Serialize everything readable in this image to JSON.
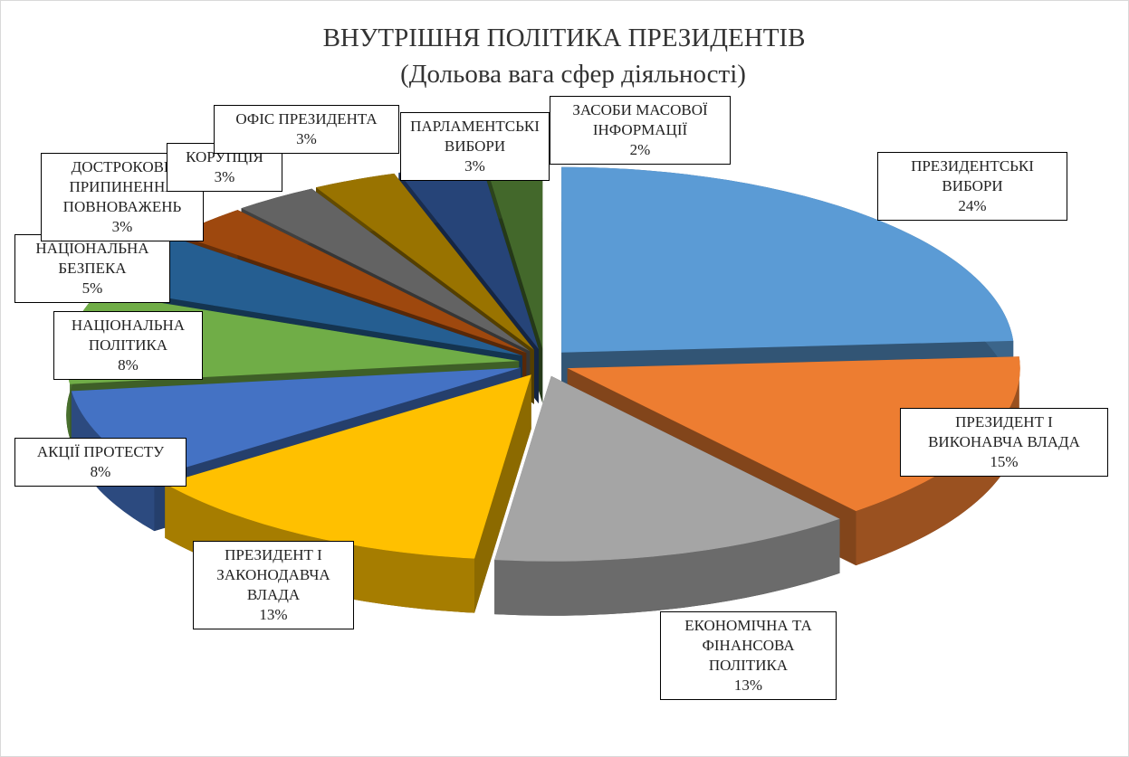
{
  "chart_data": {
    "type": "pie3d",
    "title": "ВНУТРІШНЯ ПОЛІТИКА ПРЕЗИДЕНТІВ",
    "subtitle": "(Дольова вага сфер діяльності)",
    "categories": [
      "ПРЕЗИДЕНТСЬКІ ВИБОРИ",
      "ПРЕЗИДЕНТ І ВИКОНАВЧА ВЛАДА",
      "ЕКОНОМІЧНА ТА ФІНАНСОВА ПОЛІТИКА",
      "ПРЕЗИДЕНТ І ЗАКОНОДАВЧА ВЛАДА",
      "АКЦІЇ ПРОТЕСТУ",
      "НАЦІОНАЛЬНА ПОЛІТИКА",
      "НАЦІОНАЛЬНА БЕЗПЕКА",
      "ДОСТРОКОВЕ ПРИПИНЕННЯ ПОВНОВАЖЕНЬ",
      "КОРУПЦІЯ",
      "ОФІС ПРЕЗИДЕНТА",
      "ПАРЛАМЕНТСЬКІ ВИБОРИ",
      "ЗАСОБИ МАСОВОЇ ІНФОРМАЦІЇ"
    ],
    "values": [
      24,
      15,
      13,
      13,
      8,
      8,
      5,
      3,
      3,
      3,
      3,
      2
    ],
    "value_labels": [
      "24%",
      "15%",
      "13%",
      "13%",
      "8%",
      "8%",
      "5%",
      "3%",
      "3%",
      "3%",
      "3%",
      "2%"
    ],
    "colors": [
      "#5b9bd5",
      "#ed7d31",
      "#a5a5a5",
      "#ffc000",
      "#4472c4",
      "#70ad47",
      "#255e91",
      "#9e480e",
      "#636363",
      "#997300",
      "#264478",
      "#43682b"
    ]
  }
}
